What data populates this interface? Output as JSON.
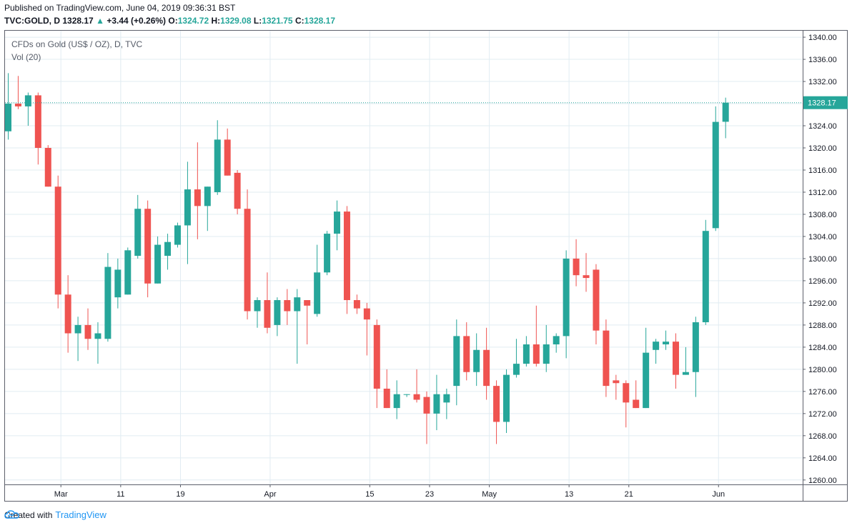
{
  "header": {
    "published": "Published on TradingView.com, June 04, 2019 09:36:31 BST",
    "symbol": "TVC:GOLD, D",
    "last": "1328.17",
    "arrow": "▲",
    "change": "+3.44 (+0.26%)",
    "o_label": "O:",
    "o_value": "1324.72",
    "h_label": "H:",
    "h_value": "1329.08",
    "l_label": "L:",
    "l_value": "1321.75",
    "c_label": "C:",
    "c_value": "1328.17"
  },
  "legend": {
    "title": "CFDs on Gold (US$ / OZ), D, TVC",
    "volume": "Vol (20)"
  },
  "footer": {
    "created_with": "Created with",
    "brand": "TradingView",
    "logo_icon": "tradingview-cloud-icon"
  },
  "colors": {
    "up": "#26a69a",
    "down": "#ef5350",
    "grid": "#e1ecf2",
    "axis_text": "#131722",
    "price_line": "#26a69a"
  },
  "chart_data": {
    "type": "candlestick",
    "title": "CFDs on Gold (US$ / OZ), D, TVC",
    "ylim": [
      1260,
      1342
    ],
    "y_ticks": [
      1260,
      1264,
      1268,
      1272,
      1276,
      1280,
      1284,
      1288,
      1292,
      1296,
      1300,
      1304,
      1308,
      1312,
      1316,
      1320,
      1324,
      1328,
      1332,
      1336,
      1340
    ],
    "y_tick_labels": [
      "1260.00",
      "1264.00",
      "1268.00",
      "1272.00",
      "1276.00",
      "1280.00",
      "1284.00",
      "1288.00",
      "1292.00",
      "1296.00",
      "1300.00",
      "1304.00",
      "1308.00",
      "1312.00",
      "1316.00",
      "1320.00",
      "1324.00",
      "1328.00",
      "1332.00",
      "1336.00",
      "1340.00"
    ],
    "x_labels": [
      {
        "index": 5,
        "label": "Mar"
      },
      {
        "index": 11,
        "label": "11"
      },
      {
        "index": 17,
        "label": "19"
      },
      {
        "index": 26,
        "label": "Apr"
      },
      {
        "index": 36,
        "label": "15"
      },
      {
        "index": 42,
        "label": "23"
      },
      {
        "index": 48,
        "label": "May"
      },
      {
        "index": 56,
        "label": "13"
      },
      {
        "index": 62,
        "label": "21"
      },
      {
        "index": 71,
        "label": "Jun"
      }
    ],
    "last_price": 1328.17,
    "last_price_label": "1328.17",
    "grid": true,
    "candles": [
      {
        "o": 1323.0,
        "h": 1333.5,
        "l": 1321.5,
        "c": 1328.0
      },
      {
        "o": 1328.0,
        "h": 1333.0,
        "l": 1327.0,
        "c": 1327.5
      },
      {
        "o": 1327.5,
        "h": 1330.0,
        "l": 1324.0,
        "c": 1329.5
      },
      {
        "o": 1329.5,
        "h": 1330.0,
        "l": 1317.0,
        "c": 1320.0
      },
      {
        "o": 1320.0,
        "h": 1320.5,
        "l": 1313.0,
        "c": 1313.0
      },
      {
        "o": 1313.0,
        "h": 1315.0,
        "l": 1291.0,
        "c": 1293.5
      },
      {
        "o": 1293.5,
        "h": 1297.0,
        "l": 1283.0,
        "c": 1286.5
      },
      {
        "o": 1286.5,
        "h": 1289.5,
        "l": 1281.5,
        "c": 1288.0
      },
      {
        "o": 1288.0,
        "h": 1291.0,
        "l": 1283.5,
        "c": 1285.5
      },
      {
        "o": 1285.5,
        "h": 1288.5,
        "l": 1281.0,
        "c": 1286.5
      },
      {
        "o": 1285.5,
        "h": 1301.0,
        "l": 1285.0,
        "c": 1298.5
      },
      {
        "o": 1293.0,
        "h": 1300.0,
        "l": 1291.0,
        "c": 1298.0
      },
      {
        "o": 1293.5,
        "h": 1302.0,
        "l": 1293.5,
        "c": 1301.5
      },
      {
        "o": 1300.5,
        "h": 1311.5,
        "l": 1300.0,
        "c": 1309.0
      },
      {
        "o": 1309.0,
        "h": 1310.5,
        "l": 1293.0,
        "c": 1295.5
      },
      {
        "o": 1295.5,
        "h": 1304.0,
        "l": 1295.5,
        "c": 1302.5
      },
      {
        "o": 1300.5,
        "h": 1304.5,
        "l": 1298.0,
        "c": 1303.0
      },
      {
        "o": 1302.5,
        "h": 1306.5,
        "l": 1302.0,
        "c": 1306.0
      },
      {
        "o": 1306.0,
        "h": 1317.5,
        "l": 1299.0,
        "c": 1312.5
      },
      {
        "o": 1312.5,
        "h": 1321.0,
        "l": 1303.5,
        "c": 1309.5
      },
      {
        "o": 1309.5,
        "h": 1313.0,
        "l": 1305.0,
        "c": 1313.0
      },
      {
        "o": 1312.0,
        "h": 1325.0,
        "l": 1311.5,
        "c": 1321.5
      },
      {
        "o": 1321.5,
        "h": 1323.5,
        "l": 1315.0,
        "c": 1315.0
      },
      {
        "o": 1315.5,
        "h": 1316.0,
        "l": 1308.0,
        "c": 1309.0
      },
      {
        "o": 1309.0,
        "h": 1312.5,
        "l": 1289.0,
        "c": 1290.5
      },
      {
        "o": 1290.5,
        "h": 1293.0,
        "l": 1287.5,
        "c": 1292.5
      },
      {
        "o": 1292.5,
        "h": 1297.5,
        "l": 1286.5,
        "c": 1287.5
      },
      {
        "o": 1288.0,
        "h": 1293.0,
        "l": 1286.0,
        "c": 1292.5
      },
      {
        "o": 1292.5,
        "h": 1294.5,
        "l": 1288.0,
        "c": 1290.5
      },
      {
        "o": 1290.5,
        "h": 1294.5,
        "l": 1281.0,
        "c": 1293.0
      },
      {
        "o": 1292.5,
        "h": 1292.5,
        "l": 1284.5,
        "c": 1291.5
      },
      {
        "o": 1290.0,
        "h": 1302.5,
        "l": 1289.5,
        "c": 1297.5
      },
      {
        "o": 1297.5,
        "h": 1305.0,
        "l": 1297.0,
        "c": 1304.5
      },
      {
        "o": 1304.5,
        "h": 1310.5,
        "l": 1301.5,
        "c": 1308.5
      },
      {
        "o": 1308.5,
        "h": 1309.5,
        "l": 1290.0,
        "c": 1292.5
      },
      {
        "o": 1292.5,
        "h": 1293.5,
        "l": 1290.0,
        "c": 1291.0
      },
      {
        "o": 1291.0,
        "h": 1292.0,
        "l": 1282.5,
        "c": 1289.0
      },
      {
        "o": 1288.0,
        "h": 1289.0,
        "l": 1273.0,
        "c": 1276.5
      },
      {
        "o": 1276.5,
        "h": 1280.0,
        "l": 1273.0,
        "c": 1273.0
      },
      {
        "o": 1273.0,
        "h": 1278.0,
        "l": 1271.0,
        "c": 1275.5
      },
      {
        "o": 1275.5,
        "h": 1275.5,
        "l": 1275.0,
        "c": 1275.5
      },
      {
        "o": 1275.5,
        "h": 1280.0,
        "l": 1274.0,
        "c": 1274.5
      },
      {
        "o": 1275.0,
        "h": 1276.0,
        "l": 1266.5,
        "c": 1272.0
      },
      {
        "o": 1272.0,
        "h": 1279.0,
        "l": 1269.0,
        "c": 1275.5
      },
      {
        "o": 1274.0,
        "h": 1276.5,
        "l": 1271.0,
        "c": 1275.5
      },
      {
        "o": 1277.0,
        "h": 1289.0,
        "l": 1273.5,
        "c": 1286.0
      },
      {
        "o": 1286.0,
        "h": 1288.5,
        "l": 1278.0,
        "c": 1279.5
      },
      {
        "o": 1279.5,
        "h": 1286.5,
        "l": 1277.0,
        "c": 1283.5
      },
      {
        "o": 1283.5,
        "h": 1287.5,
        "l": 1274.5,
        "c": 1277.0
      },
      {
        "o": 1277.0,
        "h": 1278.0,
        "l": 1266.5,
        "c": 1270.5
      },
      {
        "o": 1270.5,
        "h": 1280.0,
        "l": 1268.5,
        "c": 1279.0
      },
      {
        "o": 1279.0,
        "h": 1285.5,
        "l": 1278.5,
        "c": 1281.0
      },
      {
        "o": 1281.0,
        "h": 1286.0,
        "l": 1280.5,
        "c": 1284.5
      },
      {
        "o": 1284.5,
        "h": 1291.5,
        "l": 1280.5,
        "c": 1281.0
      },
      {
        "o": 1281.0,
        "h": 1288.0,
        "l": 1279.5,
        "c": 1284.5
      },
      {
        "o": 1284.5,
        "h": 1286.5,
        "l": 1283.0,
        "c": 1286.0
      },
      {
        "o": 1286.0,
        "h": 1301.5,
        "l": 1282.0,
        "c": 1300.0
      },
      {
        "o": 1300.0,
        "h": 1303.5,
        "l": 1295.0,
        "c": 1297.0
      },
      {
        "o": 1297.0,
        "h": 1301.0,
        "l": 1294.0,
        "c": 1296.5
      },
      {
        "o": 1298.0,
        "h": 1299.0,
        "l": 1284.5,
        "c": 1287.0
      },
      {
        "o": 1287.0,
        "h": 1289.0,
        "l": 1275.0,
        "c": 1277.0
      },
      {
        "o": 1278.0,
        "h": 1279.0,
        "l": 1274.5,
        "c": 1277.5
      },
      {
        "o": 1277.5,
        "h": 1278.0,
        "l": 1269.5,
        "c": 1274.0
      },
      {
        "o": 1274.5,
        "h": 1278.0,
        "l": 1273.0,
        "c": 1273.0
      },
      {
        "o": 1273.0,
        "h": 1287.5,
        "l": 1273.0,
        "c": 1283.0
      },
      {
        "o": 1283.5,
        "h": 1285.5,
        "l": 1281.0,
        "c": 1285.0
      },
      {
        "o": 1284.5,
        "h": 1287.0,
        "l": 1283.5,
        "c": 1285.0
      },
      {
        "o": 1285.0,
        "h": 1286.5,
        "l": 1276.5,
        "c": 1279.0
      },
      {
        "o": 1279.0,
        "h": 1284.0,
        "l": 1279.0,
        "c": 1279.5
      },
      {
        "o": 1279.5,
        "h": 1289.5,
        "l": 1275.0,
        "c": 1288.5
      },
      {
        "o": 1288.5,
        "h": 1307.0,
        "l": 1288.0,
        "c": 1305.0
      },
      {
        "o": 1305.5,
        "h": 1327.5,
        "l": 1305.0,
        "c": 1324.7
      },
      {
        "o": 1324.72,
        "h": 1329.08,
        "l": 1321.75,
        "c": 1328.17
      }
    ]
  }
}
